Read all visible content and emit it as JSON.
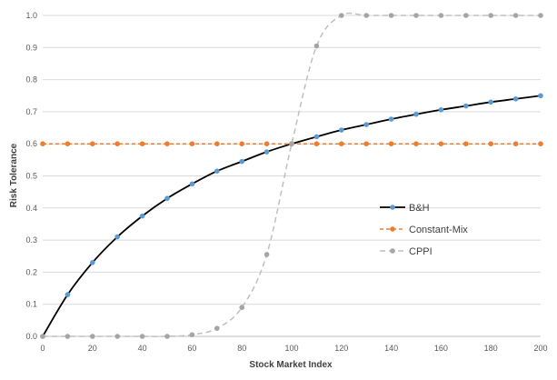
{
  "chart_data": {
    "type": "line",
    "title": "",
    "xlabel": "Stock Market Index",
    "ylabel": "Risk Tolerance",
    "xlim": [
      0,
      200
    ],
    "ylim": [
      0,
      1.0
    ],
    "x_ticks": [
      0,
      20,
      40,
      60,
      80,
      100,
      120,
      140,
      160,
      180,
      200
    ],
    "y_ticks": [
      0.0,
      0.1,
      0.2,
      0.3,
      0.4,
      0.5,
      0.6,
      0.7,
      0.8,
      0.9,
      1.0
    ],
    "y_tick_labels": [
      "0.0",
      "0.1",
      "0.2",
      "0.3",
      "0.4",
      "0.5",
      "0.6",
      "0.7",
      "0.8",
      "0.9",
      "1.0"
    ],
    "grid": "horizontal",
    "legend_position": "center-right",
    "x": [
      0,
      10,
      20,
      30,
      40,
      50,
      60,
      70,
      80,
      90,
      100,
      110,
      120,
      130,
      140,
      150,
      160,
      170,
      180,
      190,
      200
    ],
    "series": [
      {
        "name": "B&H",
        "color": "#000000",
        "marker_color": "#5b9bd5",
        "style": "solid",
        "values": [
          0.0,
          0.13,
          0.23,
          0.31,
          0.375,
          0.43,
          0.475,
          0.515,
          0.545,
          0.575,
          0.6,
          0.622,
          0.643,
          0.66,
          0.677,
          0.692,
          0.706,
          0.718,
          0.73,
          0.74,
          0.75
        ]
      },
      {
        "name": "Constant-Mix",
        "color": "#ed7d31",
        "marker_color": "#ed7d31",
        "style": "dashed",
        "values": [
          0.6,
          0.6,
          0.6,
          0.6,
          0.6,
          0.6,
          0.6,
          0.6,
          0.6,
          0.6,
          0.6,
          0.6,
          0.6,
          0.6,
          0.6,
          0.6,
          0.6,
          0.6,
          0.6,
          0.6,
          0.6
        ]
      },
      {
        "name": "CPPI",
        "color": "#bfbfbf",
        "marker_color": "#a5a5a5",
        "style": "dashed",
        "values": [
          0.0,
          0.0,
          0.0,
          0.0,
          0.0,
          0.0,
          0.005,
          0.025,
          0.09,
          0.255,
          0.6,
          0.905,
          1.0,
          1.0,
          1.0,
          1.0,
          1.0,
          1.0,
          1.0,
          1.0,
          1.0
        ]
      }
    ]
  }
}
